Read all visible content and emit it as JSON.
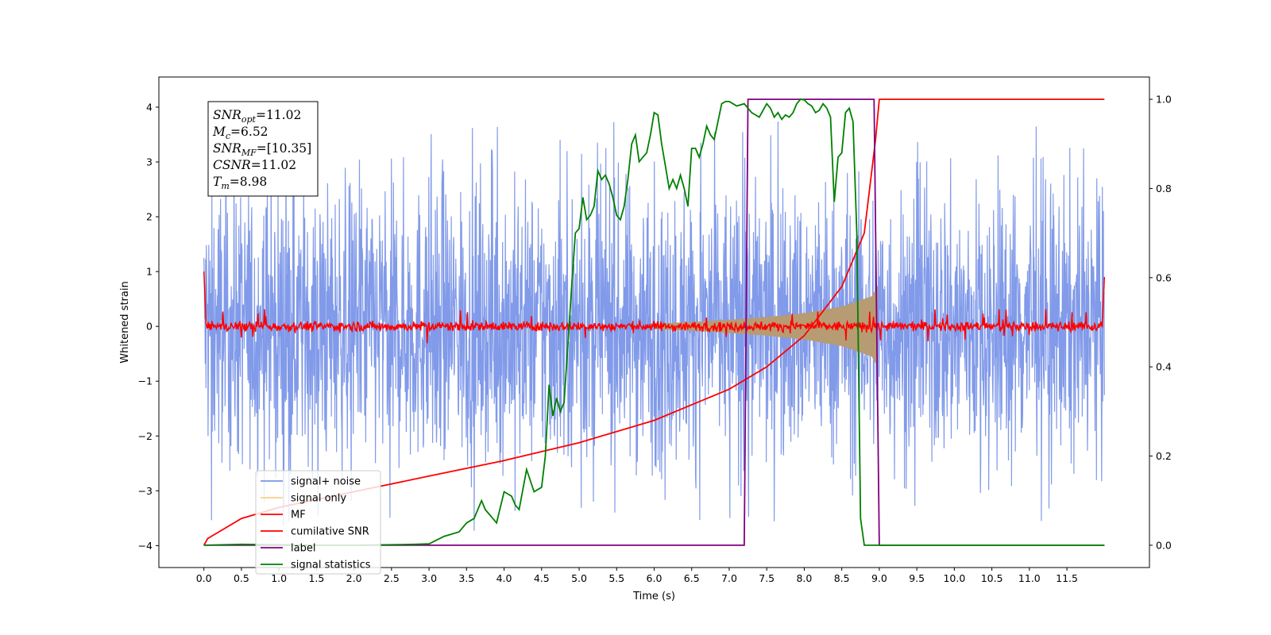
{
  "chart_data": {
    "type": "line",
    "title": "",
    "xlabel": "Time (s)",
    "ylabel": "Whitened strain",
    "y2label": "",
    "xlim": [
      -0.6,
      12.6
    ],
    "ylim": [
      -4.4,
      4.55
    ],
    "y2lim": [
      -0.05,
      1.05
    ],
    "x_ticks": [
      0.0,
      0.5,
      1.0,
      1.5,
      2.0,
      2.5,
      3.0,
      3.5,
      4.0,
      4.5,
      5.0,
      5.5,
      6.0,
      6.5,
      7.0,
      7.5,
      8.0,
      8.5,
      9.0,
      9.5,
      10.0,
      10.5,
      11.0,
      11.5
    ],
    "y_ticks": [
      -4,
      -3,
      -2,
      -1,
      0,
      1,
      2,
      3,
      4
    ],
    "y2_ticks": [
      0.0,
      0.2,
      0.4,
      0.6,
      0.8,
      1.0
    ],
    "grid": false,
    "legend_position": "lower-left",
    "annotation": {
      "lines": [
        {
          "sym": "SNR",
          "sub": "opt",
          "text": "=11.02"
        },
        {
          "sym": "M",
          "sub": "c",
          "text": "=6.52"
        },
        {
          "sym": "SNR",
          "sub": "MF",
          "text": "=[10.35]"
        },
        {
          "sym": "CSNR",
          "sub": "",
          "text": "=11.02"
        },
        {
          "sym": "T",
          "sub": "m",
          "text": "=8.98"
        }
      ]
    },
    "series": [
      {
        "name": "signal+ noise",
        "color": "#7a95e8",
        "axis": "left",
        "style": "dense-noise",
        "x": [
          0.0,
          12.0
        ],
        "band": [
          -2.5,
          2.5
        ],
        "noise_extent": [
          -3.95,
          3.85
        ]
      },
      {
        "name": "signal only",
        "color": "#f5c56a",
        "axis": "left",
        "style": "chirp-envelope",
        "x": [
          6.0,
          6.5,
          7.0,
          7.5,
          8.0,
          8.5,
          8.9,
          8.98
        ],
        "amplitude": [
          0.05,
          0.08,
          0.12,
          0.17,
          0.24,
          0.36,
          0.55,
          0.75
        ]
      },
      {
        "name": "MF",
        "color": "#ff0000",
        "axis": "left",
        "style": "noise-around-zero",
        "x": [
          0.0,
          12.0
        ],
        "band": [
          -0.1,
          0.1
        ],
        "edge_values": [
          1.0,
          0.9
        ]
      },
      {
        "name": "cumilative SNR",
        "color": "#ff0000",
        "axis": "right",
        "x": [
          0.0,
          0.05,
          0.5,
          1.0,
          2.0,
          3.0,
          4.0,
          5.0,
          6.0,
          7.0,
          7.5,
          8.0,
          8.5,
          8.8,
          8.95,
          9.0,
          12.0
        ],
        "y": [
          0.0,
          0.015,
          0.06,
          0.085,
          0.12,
          0.155,
          0.19,
          0.23,
          0.28,
          0.35,
          0.4,
          0.47,
          0.58,
          0.7,
          0.91,
          1.0,
          1.0
        ]
      },
      {
        "name": "label",
        "color": "#800080",
        "axis": "right",
        "x": [
          0.0,
          7.2,
          7.25,
          8.93,
          9.0,
          12.0
        ],
        "y": [
          0.0,
          0.0,
          1.0,
          1.0,
          0.0,
          0.0
        ]
      },
      {
        "name": "signal statistics",
        "color": "#008000",
        "axis": "right",
        "x": [
          0.0,
          0.5,
          1.0,
          1.5,
          2.0,
          2.5,
          2.8,
          3.0,
          3.2,
          3.4,
          3.5,
          3.6,
          3.7,
          3.75,
          3.85,
          3.9,
          4.0,
          4.1,
          4.15,
          4.2,
          4.3,
          4.4,
          4.5,
          4.55,
          4.6,
          4.65,
          4.7,
          4.75,
          4.8,
          4.85,
          4.9,
          4.95,
          5.0,
          5.05,
          5.1,
          5.15,
          5.2,
          5.25,
          5.3,
          5.35,
          5.4,
          5.45,
          5.5,
          5.55,
          5.6,
          5.65,
          5.7,
          5.75,
          5.8,
          5.85,
          5.9,
          5.95,
          6.0,
          6.05,
          6.1,
          6.15,
          6.2,
          6.25,
          6.3,
          6.35,
          6.4,
          6.45,
          6.5,
          6.55,
          6.6,
          6.65,
          6.7,
          6.75,
          6.8,
          6.85,
          6.9,
          6.95,
          7.0,
          7.05,
          7.1,
          7.2,
          7.3,
          7.4,
          7.5,
          7.55,
          7.6,
          7.65,
          7.7,
          7.75,
          7.8,
          7.85,
          7.9,
          7.95,
          8.0,
          8.05,
          8.1,
          8.15,
          8.2,
          8.25,
          8.3,
          8.35,
          8.4,
          8.45,
          8.5,
          8.55,
          8.6,
          8.65,
          8.7,
          8.75,
          8.8,
          8.85,
          8.9,
          8.95,
          9.0,
          9.05,
          9.1,
          9.2,
          9.5,
          10.0,
          11.0,
          12.0
        ],
        "y": [
          0.0,
          0.002,
          0.001,
          0.0,
          0.0,
          0.001,
          0.002,
          0.003,
          0.02,
          0.03,
          0.05,
          0.06,
          0.1,
          0.08,
          0.06,
          0.05,
          0.12,
          0.11,
          0.09,
          0.08,
          0.17,
          0.12,
          0.13,
          0.2,
          0.36,
          0.29,
          0.33,
          0.3,
          0.32,
          0.45,
          0.58,
          0.7,
          0.71,
          0.78,
          0.73,
          0.74,
          0.76,
          0.84,
          0.82,
          0.83,
          0.81,
          0.78,
          0.74,
          0.73,
          0.76,
          0.82,
          0.9,
          0.92,
          0.86,
          0.87,
          0.88,
          0.92,
          0.97,
          0.965,
          0.9,
          0.85,
          0.8,
          0.82,
          0.8,
          0.83,
          0.8,
          0.76,
          0.89,
          0.89,
          0.87,
          0.9,
          0.94,
          0.92,
          0.91,
          0.95,
          0.99,
          0.995,
          0.995,
          0.99,
          0.985,
          0.99,
          0.97,
          0.96,
          0.99,
          0.98,
          0.96,
          0.97,
          0.955,
          0.965,
          0.96,
          0.97,
          0.99,
          1.0,
          0.999,
          0.99,
          0.985,
          0.97,
          0.975,
          0.99,
          0.98,
          0.96,
          0.77,
          0.87,
          0.88,
          0.97,
          0.98,
          0.95,
          0.7,
          0.06,
          0.0,
          0.0,
          0.0,
          0.0,
          0.0,
          0.0,
          0.0,
          0.0,
          0.0,
          0.0,
          0.0,
          0.0
        ]
      }
    ]
  }
}
